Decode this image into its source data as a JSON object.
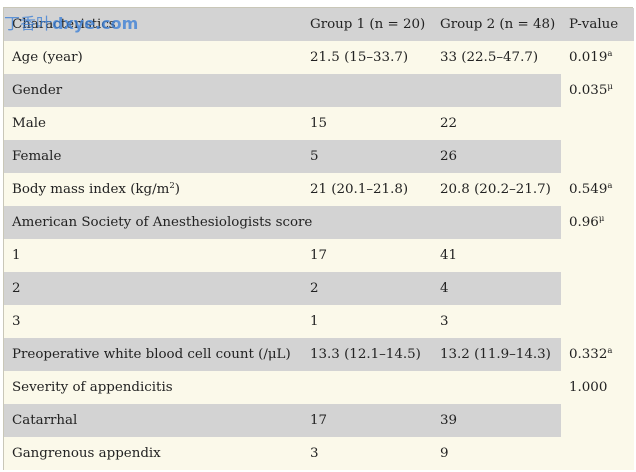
{
  "header": {
    "col1": "Characteristics",
    "col2": "Group 1 (n = 20)",
    "col3": "Group 2 (n = 48)",
    "col4": "P-value"
  },
  "rows": {
    "age": {
      "label": "Age (year)",
      "g1": "21.5 (15–33.7)",
      "g2": "33 (22.5–47.7)",
      "p": "0.019",
      "p_sup": "a"
    },
    "gender": {
      "label": "Gender",
      "p": "0.035",
      "p_sup": "μ"
    },
    "male": {
      "label": "Male",
      "g1": "15",
      "g2": "22"
    },
    "female": {
      "label": "Female",
      "g1": "5",
      "g2": "26"
    },
    "bmi": {
      "label": "Body mass index (kg/m",
      "label_sup": "2",
      "label_end": ")",
      "g1": "21 (20.1–21.8)",
      "g2": "20.8 (20.2–21.7)",
      "p": "0.549",
      "p_sup": "a"
    },
    "asa": {
      "label": "American Society of Anesthesiologists score",
      "p": "0.96",
      "p_sup": "μ"
    },
    "asa1": {
      "label": "1",
      "g1": "17",
      "g2": "41"
    },
    "asa2": {
      "label": "2",
      "g1": "2",
      "g2": "4"
    },
    "asa3": {
      "label": "3",
      "g1": "1",
      "g2": "3"
    },
    "wbc": {
      "label": "Preoperative white blood cell count (/μL)",
      "g1": "13.3 (12.1–14.5)",
      "g2": "13.2 (11.9–14.3)",
      "p": "0.332",
      "p_sup": "a"
    },
    "severity": {
      "label": "Severity of appendicitis",
      "p": "1.000"
    },
    "catarrhal": {
      "label": "Catarrhal",
      "g1": "17",
      "g2": "39"
    },
    "gangrenous": {
      "label": "Gangrenous appendix",
      "g1": "3",
      "g2": "9"
    }
  },
  "watermark": {
    "cn": "丁香叶",
    "latin": "dxye.com"
  },
  "colors": {
    "row_white": "#fbf9ea",
    "row_gray": "#d3d3d3",
    "watermark": "#3b7fd6"
  }
}
